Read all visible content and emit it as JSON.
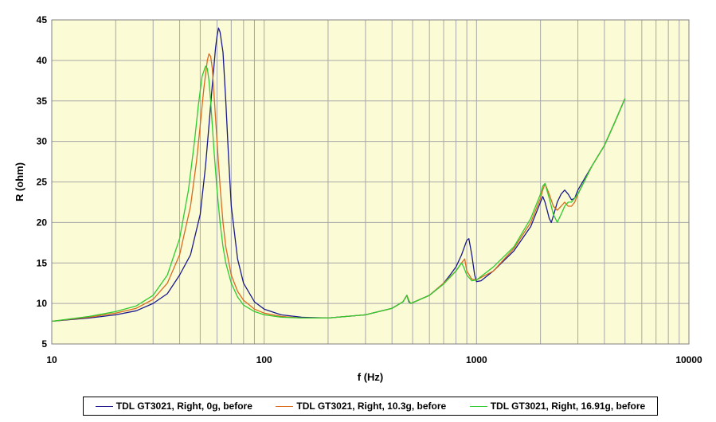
{
  "chart_data": {
    "type": "line",
    "title": "",
    "xlabel": "f (Hz)",
    "ylabel": "R (ohm)",
    "xscale": "log",
    "xlim": [
      10,
      10000
    ],
    "ylim": [
      5,
      45
    ],
    "grid": true,
    "legend_position": "bottom",
    "x_ticks": [
      "10",
      "100",
      "1000",
      "10000"
    ],
    "y_ticks": [
      "5",
      "10",
      "15",
      "20",
      "25",
      "30",
      "35",
      "40",
      "45"
    ],
    "colors": {
      "plot_bg": "#fbfbd6",
      "grid": "#a8a8a8"
    },
    "series": [
      {
        "name": "TDL GT3021, Right, 0g, before",
        "color": "#1a1a8c",
        "x": [
          10,
          15,
          20,
          25,
          30,
          35,
          40,
          45,
          50,
          53,
          55,
          57,
          59,
          60,
          61,
          62,
          64,
          66,
          68,
          70,
          75,
          80,
          90,
          100,
          120,
          150,
          200,
          300,
          400,
          450,
          470,
          480,
          490,
          500,
          600,
          700,
          750,
          800,
          850,
          900,
          920,
          950,
          980,
          1000,
          1050,
          1200,
          1500,
          1800,
          2000,
          2050,
          2100,
          2150,
          2200,
          2250,
          2300,
          2400,
          2500,
          2600,
          2700,
          2800,
          2900,
          3000,
          3500,
          4000,
          4500,
          5000
        ],
        "y": [
          7.8,
          8.2,
          8.6,
          9.1,
          10.0,
          11.2,
          13.5,
          16.0,
          21.0,
          27.0,
          32.0,
          37.0,
          41.5,
          43.0,
          44.0,
          43.5,
          41.0,
          35.0,
          28.0,
          22.0,
          15.5,
          12.5,
          10.2,
          9.3,
          8.6,
          8.3,
          8.2,
          8.6,
          9.4,
          10.2,
          11.0,
          10.2,
          10.0,
          10.1,
          11.0,
          12.5,
          13.5,
          14.5,
          16.0,
          17.8,
          18.0,
          16.0,
          13.5,
          12.7,
          12.8,
          14.0,
          16.5,
          19.5,
          22.5,
          23.2,
          22.5,
          21.5,
          20.5,
          20.0,
          20.8,
          22.5,
          23.5,
          24.0,
          23.5,
          22.8,
          23.0,
          24.0,
          27.0,
          29.5,
          32.5,
          35.3
        ]
      },
      {
        "name": "TDL GT3021, Right, 10.3g, before",
        "color": "#d96b1c",
        "x": [
          10,
          15,
          20,
          25,
          30,
          35,
          40,
          45,
          48,
          50,
          52,
          54,
          55,
          56,
          57,
          58,
          60,
          62,
          64,
          66,
          70,
          75,
          80,
          90,
          100,
          120,
          150,
          200,
          300,
          400,
          450,
          470,
          480,
          490,
          500,
          600,
          700,
          800,
          850,
          880,
          900,
          950,
          1000,
          1200,
          1500,
          1800,
          2000,
          2050,
          2100,
          2200,
          2300,
          2400,
          2500,
          2600,
          2700,
          2800,
          2900,
          3000,
          3500,
          4000,
          4500,
          5000
        ],
        "y": [
          7.8,
          8.3,
          8.8,
          9.4,
          10.5,
          12.5,
          16.0,
          22.0,
          27.5,
          32.0,
          36.5,
          40.0,
          40.8,
          40.5,
          39.0,
          36.0,
          30.0,
          24.5,
          20.0,
          17.0,
          13.5,
          11.5,
          10.4,
          9.3,
          8.8,
          8.4,
          8.2,
          8.2,
          8.6,
          9.4,
          10.2,
          11.0,
          10.4,
          10.0,
          10.1,
          11.0,
          12.5,
          14.0,
          15.0,
          15.5,
          14.0,
          13.0,
          12.9,
          14.0,
          16.8,
          20.0,
          23.0,
          24.0,
          24.8,
          23.5,
          22.0,
          21.5,
          22.0,
          22.5,
          22.0,
          22.0,
          22.5,
          23.5,
          27.0,
          29.5,
          32.5,
          35.3
        ]
      },
      {
        "name": "TDL GT3021, Right, 16.91g, before",
        "color": "#2fcb2f",
        "x": [
          10,
          15,
          20,
          25,
          30,
          35,
          40,
          44,
          47,
          49,
          51,
          53,
          54,
          55,
          56,
          58,
          60,
          62,
          64,
          66,
          70,
          75,
          80,
          90,
          100,
          120,
          150,
          200,
          300,
          400,
          450,
          470,
          480,
          490,
          500,
          600,
          700,
          800,
          850,
          870,
          900,
          950,
          1000,
          1200,
          1500,
          1800,
          2000,
          2050,
          2100,
          2200,
          2300,
          2400,
          2500,
          2600,
          2700,
          2800,
          2900,
          3000,
          3500,
          4000,
          4500,
          5000
        ],
        "y": [
          7.8,
          8.4,
          9.0,
          9.7,
          11.0,
          13.5,
          18.0,
          24.0,
          30.0,
          34.5,
          38.0,
          39.3,
          39.0,
          37.5,
          35.0,
          29.0,
          24.0,
          20.0,
          17.0,
          15.0,
          12.5,
          10.8,
          9.8,
          9.0,
          8.6,
          8.3,
          8.2,
          8.2,
          8.6,
          9.4,
          10.2,
          11.0,
          10.3,
          10.0,
          10.1,
          11.0,
          12.4,
          14.0,
          15.0,
          14.5,
          13.5,
          12.8,
          12.9,
          14.5,
          17.0,
          20.5,
          23.5,
          24.5,
          24.8,
          23.0,
          21.0,
          20.0,
          21.0,
          22.0,
          22.5,
          22.5,
          23.0,
          23.5,
          27.0,
          29.5,
          32.5,
          35.3
        ]
      }
    ]
  }
}
